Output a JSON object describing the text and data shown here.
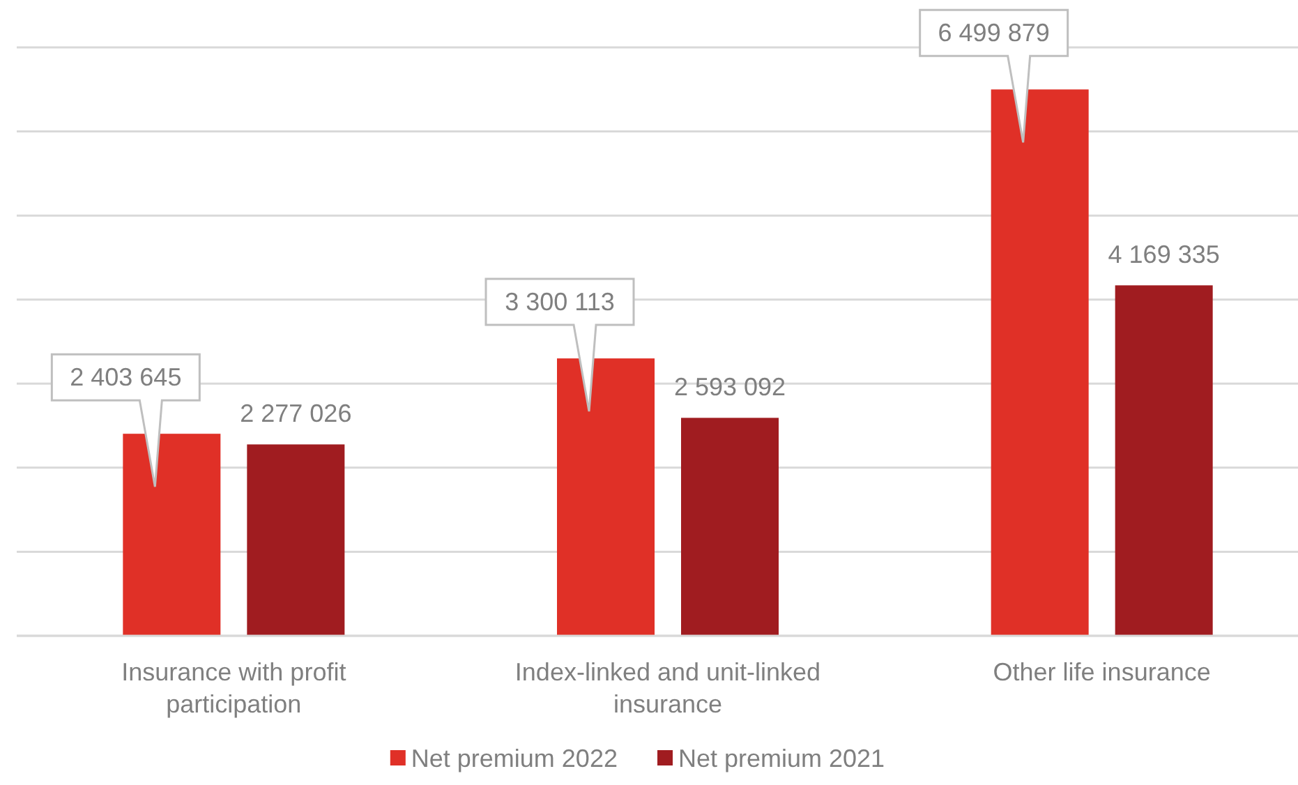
{
  "chart_data": {
    "type": "bar",
    "categories": [
      "Insurance with profit participation",
      "Index-linked and unit-linked insurance",
      "Other life insurance"
    ],
    "series": [
      {
        "name": "Net premium 2022",
        "color": "#e03027",
        "values": [
          2403645,
          3300113,
          6499879
        ]
      },
      {
        "name": "Net premium 2021",
        "color": "#a01c20",
        "values": [
          2277026,
          2593092,
          4169335
        ]
      }
    ],
    "ylim": [
      0,
      7000000
    ],
    "yticks": [
      {
        "value": 0,
        "label": null
      },
      {
        "value": 1000000,
        "label": null
      },
      {
        "value": 2000000,
        "label": null
      },
      {
        "value": 3000000,
        "label": null
      },
      {
        "value": 4000000,
        "label": null
      },
      {
        "value": 5000000,
        "label": null
      },
      {
        "value": 6000000,
        "label": null
      },
      {
        "value": 7000000,
        "label": null
      }
    ],
    "tick_labels": "x",
    "grid": "y",
    "data_labels": true,
    "legend": "bottom"
  }
}
